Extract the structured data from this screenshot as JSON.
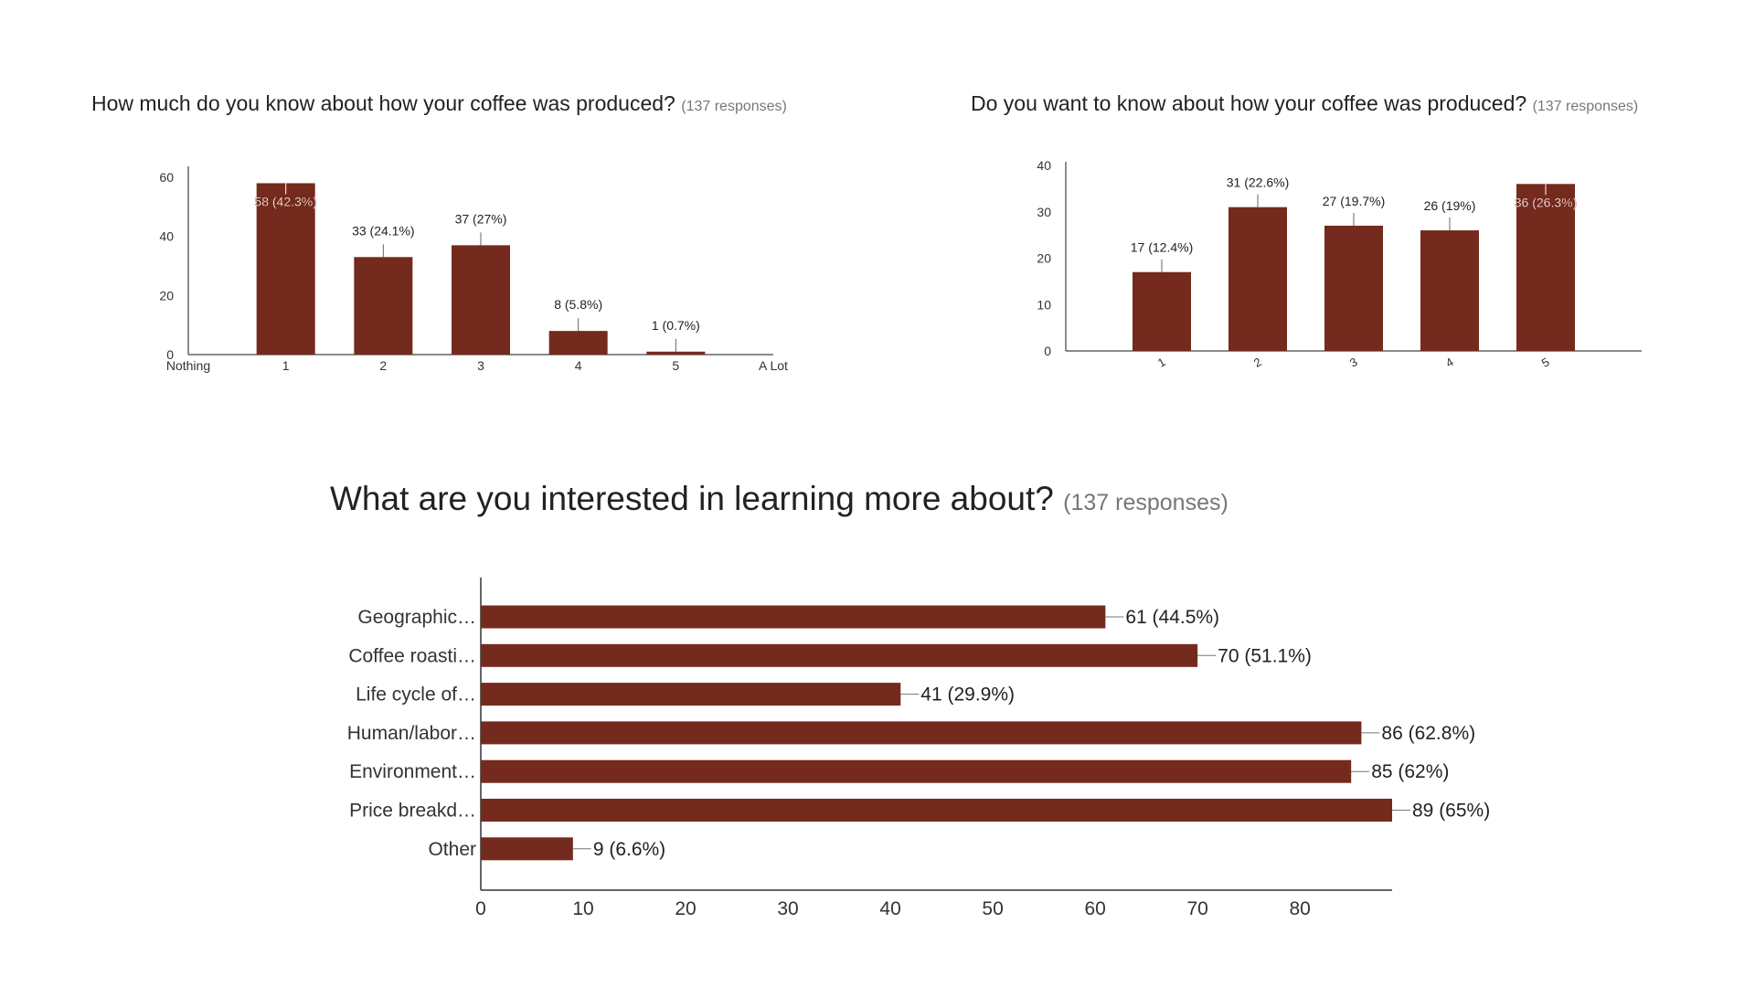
{
  "chart_data": [
    {
      "id": "c1",
      "type": "bar",
      "title": "How much do you know about how your coffee was produced?",
      "subtitle": "(137 responses)",
      "categories": [
        "1",
        "2",
        "3",
        "4",
        "5"
      ],
      "values": [
        58,
        33,
        37,
        8,
        1
      ],
      "data_labels": [
        "58 (42.3%)",
        "33 (24.1%)",
        "37 (27%)",
        "8 (5.8%)",
        "1 (0.7%)"
      ],
      "axis_end_labels": [
        "Nothing",
        "A Lot"
      ],
      "ylim": [
        0,
        60
      ],
      "yticks": [
        0,
        20,
        40,
        60
      ],
      "bar_color": "#742a1c"
    },
    {
      "id": "c2",
      "type": "bar",
      "title": "Do you want to know about how your coffee was produced?",
      "subtitle": "(137 responses)",
      "categories": [
        "1",
        "2",
        "3",
        "4",
        "5"
      ],
      "values": [
        17,
        31,
        27,
        26,
        36
      ],
      "data_labels": [
        "17 (12.4%)",
        "31 (22.6%)",
        "27 (19.7%)",
        "26 (19%)",
        "36 (26.3%)"
      ],
      "ylim": [
        0,
        40
      ],
      "yticks": [
        0,
        10,
        20,
        30,
        40
      ],
      "bar_color": "#742a1c"
    },
    {
      "id": "c3",
      "type": "bar",
      "orientation": "horizontal",
      "title": "What are you interested in learning more about?",
      "subtitle": "(137 responses)",
      "categories": [
        "Geographic…",
        "Coffee roasti…",
        "Life cycle of…",
        "Human/labor…",
        "Environment…",
        "Price breakd…",
        "Other"
      ],
      "values": [
        61,
        70,
        41,
        86,
        85,
        89,
        9
      ],
      "data_labels": [
        "61 (44.5%)",
        "70 (51.1%)",
        "41 (29.9%)",
        "86 (62.8%)",
        "85 (62%)",
        "89 (65%)",
        "9 (6.6%)"
      ],
      "xlim": [
        0,
        89
      ],
      "xticks": [
        0,
        10,
        20,
        30,
        40,
        50,
        60,
        70,
        80
      ],
      "bar_color": "#742a1c"
    }
  ]
}
